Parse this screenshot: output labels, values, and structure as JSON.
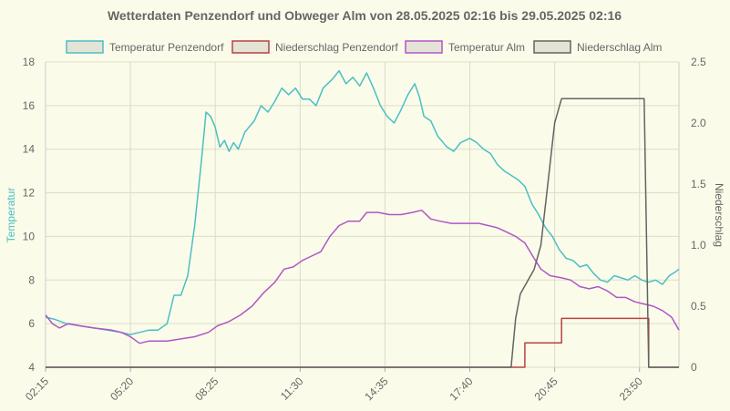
{
  "chart_data": {
    "type": "line",
    "title": "Wetterdaten Penzendorf und Obweger Alm von 28.05.2025 02:16 bis 29.05.2025 02:16",
    "ylabel_left": "Temperatur",
    "ylabel_right": "Niederschlag",
    "ylim_left": [
      4,
      18
    ],
    "ylim_right": [
      0,
      2.5
    ],
    "yticks_left": [
      "4",
      "6",
      "8",
      "10",
      "12",
      "14",
      "16",
      "18"
    ],
    "yticks_right": [
      "0",
      "0.5",
      "1.0",
      "1.5",
      "2.0",
      "2.5"
    ],
    "xticks": [
      "02:15",
      "05:20",
      "08:25",
      "11:30",
      "14:35",
      "17:40",
      "20:45",
      "23:50"
    ],
    "legend_position": "top",
    "grid": true,
    "series": [
      {
        "name": "Temperatur Penzendorf",
        "axis": "left",
        "color": "#4bbfc4",
        "points": [
          [
            "02:15",
            6.3
          ],
          [
            "02:35",
            6.2
          ],
          [
            "03:00",
            6.0
          ],
          [
            "03:30",
            5.9
          ],
          [
            "04:00",
            5.8
          ],
          [
            "04:30",
            5.7
          ],
          [
            "05:00",
            5.6
          ],
          [
            "05:20",
            5.5
          ],
          [
            "05:40",
            5.6
          ],
          [
            "06:00",
            5.7
          ],
          [
            "06:20",
            5.7
          ],
          [
            "06:40",
            6.0
          ],
          [
            "06:55",
            7.3
          ],
          [
            "07:10",
            7.3
          ],
          [
            "07:25",
            8.2
          ],
          [
            "07:40",
            10.5
          ],
          [
            "07:55",
            13.5
          ],
          [
            "08:05",
            15.7
          ],
          [
            "08:15",
            15.5
          ],
          [
            "08:25",
            15.0
          ],
          [
            "08:35",
            14.1
          ],
          [
            "08:45",
            14.4
          ],
          [
            "08:55",
            13.9
          ],
          [
            "09:05",
            14.3
          ],
          [
            "09:15",
            14.0
          ],
          [
            "09:30",
            14.8
          ],
          [
            "09:50",
            15.3
          ],
          [
            "10:05",
            16.0
          ],
          [
            "10:20",
            15.7
          ],
          [
            "10:35",
            16.2
          ],
          [
            "10:50",
            16.8
          ],
          [
            "11:05",
            16.5
          ],
          [
            "11:20",
            16.8
          ],
          [
            "11:35",
            16.3
          ],
          [
            "11:50",
            16.3
          ],
          [
            "12:05",
            16.0
          ],
          [
            "12:20",
            16.8
          ],
          [
            "12:40",
            17.2
          ],
          [
            "12:55",
            17.6
          ],
          [
            "13:10",
            17.0
          ],
          [
            "13:25",
            17.3
          ],
          [
            "13:40",
            16.9
          ],
          [
            "13:55",
            17.5
          ],
          [
            "14:10",
            16.8
          ],
          [
            "14:25",
            16.0
          ],
          [
            "14:40",
            15.5
          ],
          [
            "14:55",
            15.2
          ],
          [
            "15:10",
            15.8
          ],
          [
            "15:25",
            16.5
          ],
          [
            "15:40",
            17.0
          ],
          [
            "15:50",
            16.4
          ],
          [
            "16:00",
            15.5
          ],
          [
            "16:15",
            15.3
          ],
          [
            "16:30",
            14.6
          ],
          [
            "16:50",
            14.1
          ],
          [
            "17:05",
            13.9
          ],
          [
            "17:20",
            14.3
          ],
          [
            "17:40",
            14.5
          ],
          [
            "17:55",
            14.3
          ],
          [
            "18:10",
            14.0
          ],
          [
            "18:25",
            13.8
          ],
          [
            "18:40",
            13.3
          ],
          [
            "18:55",
            13.0
          ],
          [
            "19:10",
            12.8
          ],
          [
            "19:25",
            12.6
          ],
          [
            "19:40",
            12.3
          ],
          [
            "19:55",
            11.5
          ],
          [
            "20:10",
            11.0
          ],
          [
            "20:25",
            10.4
          ],
          [
            "20:40",
            10.0
          ],
          [
            "20:55",
            9.4
          ],
          [
            "21:10",
            9.0
          ],
          [
            "21:25",
            8.9
          ],
          [
            "21:40",
            8.6
          ],
          [
            "21:55",
            8.7
          ],
          [
            "22:10",
            8.3
          ],
          [
            "22:25",
            8.0
          ],
          [
            "22:40",
            7.9
          ],
          [
            "22:55",
            8.2
          ],
          [
            "23:10",
            8.1
          ],
          [
            "23:25",
            8.0
          ],
          [
            "23:40",
            8.2
          ],
          [
            "23:55",
            8.0
          ],
          [
            "24:10",
            7.9
          ],
          [
            "24:25",
            8.0
          ],
          [
            "24:40",
            7.8
          ],
          [
            "24:55",
            8.2
          ],
          [
            "25:10",
            8.4
          ],
          [
            "25:16",
            8.5
          ]
        ]
      },
      {
        "name": "Niederschlag Penzendorf",
        "axis": "right",
        "color": "#b8433f",
        "points": [
          [
            "02:15",
            0
          ],
          [
            "19:40",
            0
          ],
          [
            "19:40",
            0.2
          ],
          [
            "21:00",
            0.2
          ],
          [
            "21:00",
            0.4
          ],
          [
            "24:10",
            0.4
          ],
          [
            "24:10",
            0
          ],
          [
            "25:16",
            0
          ]
        ]
      },
      {
        "name": "Temperatur Alm",
        "axis": "left",
        "color": "#b057c4",
        "points": [
          [
            "02:15",
            6.4
          ],
          [
            "02:30",
            6.0
          ],
          [
            "02:45",
            5.8
          ],
          [
            "03:05",
            6.0
          ],
          [
            "03:30",
            5.9
          ],
          [
            "04:00",
            5.8
          ],
          [
            "04:40",
            5.7
          ],
          [
            "05:00",
            5.6
          ],
          [
            "05:20",
            5.4
          ],
          [
            "05:40",
            5.1
          ],
          [
            "06:00",
            5.2
          ],
          [
            "06:40",
            5.2
          ],
          [
            "07:10",
            5.3
          ],
          [
            "07:40",
            5.4
          ],
          [
            "08:10",
            5.6
          ],
          [
            "08:30",
            5.9
          ],
          [
            "08:55",
            6.1
          ],
          [
            "09:20",
            6.4
          ],
          [
            "09:45",
            6.8
          ],
          [
            "10:10",
            7.4
          ],
          [
            "10:35",
            7.9
          ],
          [
            "10:55",
            8.5
          ],
          [
            "11:15",
            8.6
          ],
          [
            "11:35",
            8.9
          ],
          [
            "11:55",
            9.1
          ],
          [
            "12:15",
            9.3
          ],
          [
            "12:35",
            10.0
          ],
          [
            "12:55",
            10.5
          ],
          [
            "13:15",
            10.7
          ],
          [
            "13:40",
            10.7
          ],
          [
            "13:55",
            11.1
          ],
          [
            "14:20",
            11.1
          ],
          [
            "14:45",
            11.0
          ],
          [
            "15:10",
            11.0
          ],
          [
            "15:35",
            11.1
          ],
          [
            "15:55",
            11.2
          ],
          [
            "16:15",
            10.8
          ],
          [
            "16:35",
            10.7
          ],
          [
            "17:00",
            10.6
          ],
          [
            "17:30",
            10.6
          ],
          [
            "18:00",
            10.6
          ],
          [
            "18:20",
            10.5
          ],
          [
            "18:40",
            10.4
          ],
          [
            "19:00",
            10.2
          ],
          [
            "19:20",
            10.0
          ],
          [
            "19:40",
            9.7
          ],
          [
            "20:00",
            9.0
          ],
          [
            "20:15",
            8.5
          ],
          [
            "20:35",
            8.2
          ],
          [
            "21:00",
            8.1
          ],
          [
            "21:20",
            8.0
          ],
          [
            "21:40",
            7.7
          ],
          [
            "22:00",
            7.6
          ],
          [
            "22:20",
            7.7
          ],
          [
            "22:40",
            7.5
          ],
          [
            "23:00",
            7.2
          ],
          [
            "23:20",
            7.2
          ],
          [
            "23:40",
            7.0
          ],
          [
            "24:00",
            6.9
          ],
          [
            "24:20",
            6.8
          ],
          [
            "24:40",
            6.6
          ],
          [
            "25:00",
            6.3
          ],
          [
            "25:16",
            5.7
          ]
        ]
      },
      {
        "name": "Niederschlag Alm",
        "axis": "right",
        "color": "#5f6661",
        "points": [
          [
            "02:15",
            0
          ],
          [
            "19:10",
            0
          ],
          [
            "19:20",
            0.4
          ],
          [
            "19:30",
            0.6
          ],
          [
            "20:00",
            0.8
          ],
          [
            "20:15",
            1.0
          ],
          [
            "20:30",
            1.5
          ],
          [
            "20:45",
            2.0
          ],
          [
            "21:00",
            2.2
          ],
          [
            "24:00",
            2.2
          ],
          [
            "24:10",
            0
          ],
          [
            "25:16",
            0
          ]
        ]
      }
    ]
  }
}
